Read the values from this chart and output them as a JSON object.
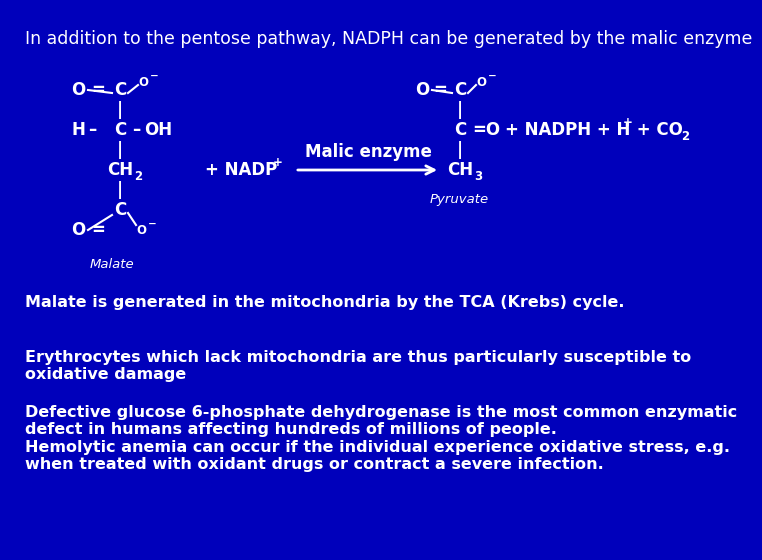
{
  "background_color": "#0000BB",
  "title": "In addition to the pentose pathway, NADPH can be generated by the malic enzyme",
  "title_fontsize": 12.5,
  "text_color": "#FFFFFF",
  "paragraph1": "Malate is generated in the mitochondria by the TCA (Krebs) cycle.",
  "paragraph2": "Erythrocytes which lack mitochondria are thus particularly susceptible to\noxidative damage",
  "paragraph3": "Defective glucose 6-phosphate dehydrogenase is the most common enzymatic\ndefect in humans affecting hundreds of millions of people.\nHemolytic anemia can occur if the individual experience oxidative stress, e.g.\nwhen treated with oxidant drugs or contract a severe infection.",
  "body_fontsize": 11.5,
  "small_fontsize": 8.5,
  "chem_fontsize": 12.0,
  "sub_fontsize": 8.5
}
